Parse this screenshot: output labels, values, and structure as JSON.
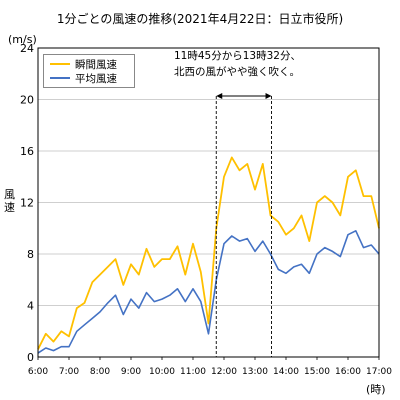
{
  "chart_data": {
    "type": "line",
    "title": "1分ごとの風速の推移(2021年4月22日：日立市役所)",
    "ylabel": "風速",
    "yunit": "(m/s)",
    "xunit": "(時)",
    "ylim": [
      0,
      24
    ],
    "yticks": [
      "0",
      "4",
      "8",
      "12",
      "16",
      "20",
      "24"
    ],
    "xlim": [
      6,
      17
    ],
    "xticks": [
      "6:00",
      "7:00",
      "8:00",
      "9:00",
      "10:00",
      "11:00",
      "12:00",
      "13:00",
      "14:00",
      "15:00",
      "16:00",
      "17:00"
    ],
    "grid": "horizontal",
    "legend": "top-left",
    "annotation": {
      "lines": [
        "11時45分から13時32分、",
        "北西の風がやや強く吹く。"
      ],
      "span": [
        11.75,
        13.533
      ]
    },
    "x": [
      6.0,
      6.25,
      6.5,
      6.75,
      7.0,
      7.25,
      7.5,
      7.75,
      8.0,
      8.25,
      8.5,
      8.75,
      9.0,
      9.25,
      9.5,
      9.75,
      10.0,
      10.25,
      10.5,
      10.75,
      11.0,
      11.25,
      11.5,
      11.75,
      12.0,
      12.25,
      12.5,
      12.75,
      13.0,
      13.25,
      13.5,
      13.75,
      14.0,
      14.25,
      14.5,
      14.75,
      15.0,
      15.25,
      15.5,
      15.75,
      16.0,
      16.25,
      16.5,
      16.75,
      17.0
    ],
    "series": [
      {
        "name": "瞬間風速",
        "color": "#FFC000",
        "values": [
          0.6,
          1.8,
          1.2,
          2.0,
          1.6,
          3.8,
          4.2,
          5.8,
          6.4,
          7.0,
          7.6,
          5.6,
          7.2,
          6.4,
          8.4,
          7.0,
          7.6,
          7.6,
          8.6,
          6.4,
          8.8,
          6.6,
          2.6,
          10.0,
          14.0,
          15.5,
          14.5,
          15.0,
          13.0,
          15.0,
          11.0,
          10.5,
          9.5,
          10.0,
          11.0,
          9.0,
          12.0,
          12.5,
          12.0,
          11.0,
          14.0,
          14.5,
          12.5,
          12.5,
          10.0
        ]
      },
      {
        "name": "平均風速",
        "color": "#4472C4",
        "values": [
          0.3,
          0.7,
          0.5,
          0.8,
          0.8,
          2.0,
          2.5,
          3.0,
          3.5,
          4.2,
          4.8,
          3.3,
          4.5,
          3.8,
          5.0,
          4.3,
          4.5,
          4.8,
          5.3,
          4.3,
          5.3,
          4.3,
          1.8,
          6.0,
          8.8,
          9.4,
          9.0,
          9.2,
          8.2,
          9.0,
          8.0,
          6.8,
          6.5,
          7.0,
          7.2,
          6.5,
          8.0,
          8.5,
          8.2,
          7.8,
          9.5,
          9.8,
          8.5,
          8.7,
          8.0
        ]
      }
    ]
  }
}
